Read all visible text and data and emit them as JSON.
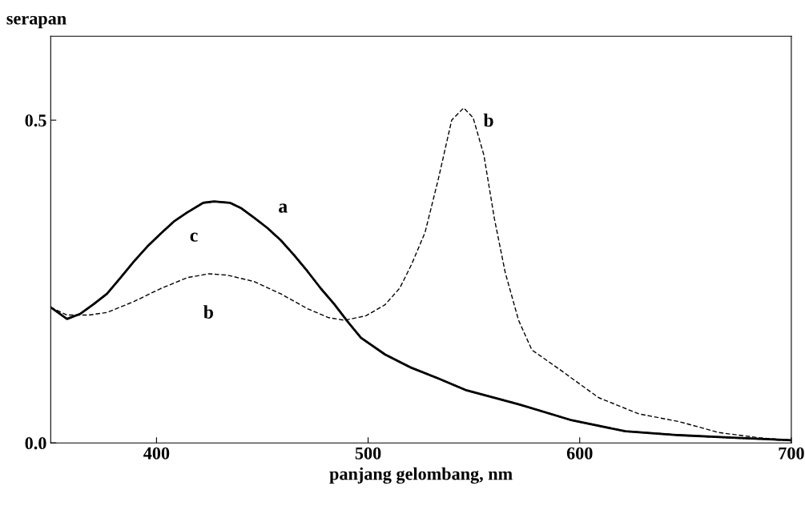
{
  "chart_data": {
    "type": "line",
    "xlabel": "panjang gelombang, nm",
    "ylabel": "serapan",
    "xlim": [
      350,
      700
    ],
    "xticks": [
      400,
      500,
      600,
      700
    ],
    "ylim": [
      0,
      0.63
    ],
    "yticks": [
      {
        "value": 0,
        "label": "0.0"
      },
      {
        "value": 0.5,
        "label": "0.5"
      }
    ],
    "grid": false,
    "marker": "none",
    "series": [
      {
        "name": "c",
        "color": "#000000",
        "line_style": "dotted",
        "x": [
          350,
          357.7,
          364,
          370.3,
          376.6,
          383,
          389.3,
          395.6,
          401.9,
          408.2,
          414.5,
          422.1,
          427.2,
          434.7,
          439.8,
          446.1,
          452.4,
          458.7,
          465,
          471.3,
          477.7,
          484,
          490.3,
          496.6,
          508,
          520,
          533,
          546,
          571,
          596.3,
          621.6,
          646.9,
          672.1,
          700
        ],
        "values": [
          0.21,
          0.192,
          0.2,
          0.215,
          0.231,
          0.256,
          0.281,
          0.304,
          0.324,
          0.343,
          0.357,
          0.372,
          0.374,
          0.372,
          0.364,
          0.349,
          0.333,
          0.314,
          0.291,
          0.266,
          0.239,
          0.215,
          0.188,
          0.163,
          0.137,
          0.117,
          0.1,
          0.082,
          0.06,
          0.035,
          0.018,
          0.012,
          0.008,
          0.004
        ]
      },
      {
        "name": "b",
        "color": "#000000",
        "line_style": "dashed",
        "x": [
          350,
          357.7,
          367.8,
          376.6,
          389.3,
          401.9,
          414.5,
          424.6,
          433.4,
          446.1,
          458.7,
          471.3,
          481.4,
          489,
          499,
          508,
          515,
          520.6,
          526.9,
          533.2,
          539.5,
          545.2,
          549.6,
          554.7,
          559.7,
          564.8,
          571.1,
          577.4,
          590,
          609,
          627.9,
          646.9,
          665.8,
          684.7,
          700
        ],
        "values": [
          0.21,
          0.198,
          0.198,
          0.202,
          0.219,
          0.239,
          0.256,
          0.262,
          0.26,
          0.25,
          0.231,
          0.208,
          0.194,
          0.19,
          0.197,
          0.214,
          0.24,
          0.277,
          0.326,
          0.409,
          0.5,
          0.519,
          0.504,
          0.446,
          0.347,
          0.264,
          0.19,
          0.144,
          0.115,
          0.07,
          0.045,
          0.033,
          0.016,
          0.008,
          0.004
        ]
      },
      {
        "name": "a",
        "color": "#000000",
        "line_style": "solid",
        "x": [
          350,
          357.7,
          364,
          370.3,
          376.6,
          383,
          389.3,
          395.6,
          401.9,
          408.2,
          414.5,
          422.1,
          427.2,
          434.7,
          439.8,
          446.1,
          452.4,
          458.7,
          465,
          471.3,
          477.7,
          484,
          490.3,
          496.6,
          508,
          520,
          533,
          546,
          571,
          596.3,
          621.6,
          646.9,
          672.1,
          700
        ],
        "values": [
          0.21,
          0.192,
          0.2,
          0.215,
          0.231,
          0.256,
          0.281,
          0.304,
          0.324,
          0.343,
          0.357,
          0.372,
          0.374,
          0.372,
          0.364,
          0.349,
          0.333,
          0.314,
          0.291,
          0.266,
          0.239,
          0.215,
          0.188,
          0.163,
          0.137,
          0.117,
          0.1,
          0.082,
          0.06,
          0.035,
          0.018,
          0.012,
          0.008,
          0.004
        ]
      }
    ]
  }
}
